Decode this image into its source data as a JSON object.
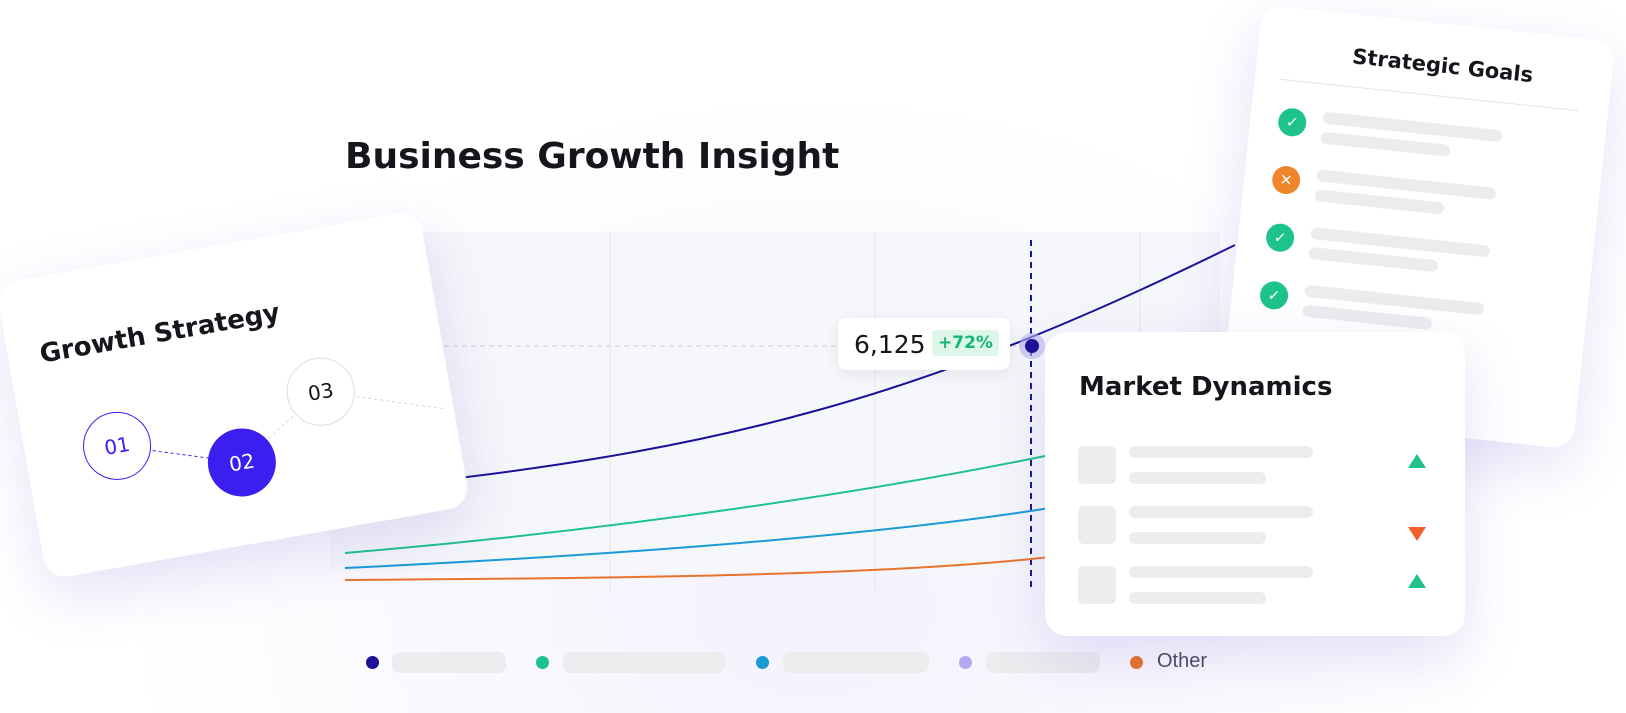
{
  "header": {
    "title": "Business Growth Insight"
  },
  "growth_strategy": {
    "title": "Growth Strategy",
    "steps": [
      "01",
      "02",
      "03"
    ]
  },
  "chart": {
    "callout": {
      "value": "6,125",
      "change": "+72%"
    },
    "legend": {
      "items": [
        "Other"
      ]
    }
  },
  "market_dynamics": {
    "title": "Market Dynamics"
  },
  "strategic_goals": {
    "title": "Strategic Goals"
  }
}
